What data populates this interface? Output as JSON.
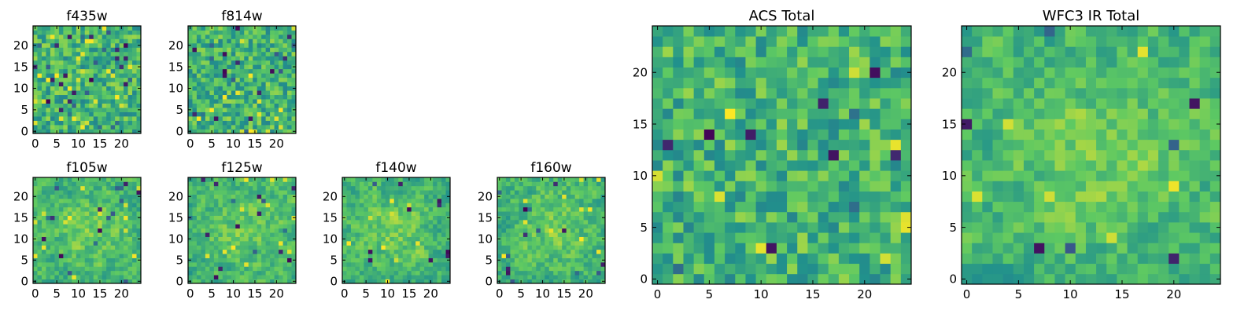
{
  "figure": {
    "background": "#ffffff",
    "colormap": "viridis",
    "colormap_stops": [
      "#440154",
      "#3b528b",
      "#21918c",
      "#5ec962",
      "#fde725"
    ]
  },
  "chart_data": [
    {
      "type": "heatmap",
      "title": "f435w",
      "xticks": [
        "0",
        "5",
        "10",
        "15",
        "20"
      ],
      "yticks": [
        "0",
        "5",
        "10",
        "15",
        "20"
      ],
      "xlim": [
        -0.5,
        24.5
      ],
      "ylim": [
        -0.5,
        24.5
      ],
      "grid_size": 25,
      "seed": 11,
      "smooth": 0,
      "vmin": 0.0,
      "vmax": 1.0,
      "outliers": 32,
      "bright": 0
    },
    {
      "type": "heatmap",
      "title": "f814w",
      "xticks": [
        "0",
        "5",
        "10",
        "15",
        "20"
      ],
      "yticks": [
        "0",
        "5",
        "10",
        "15",
        "20"
      ],
      "xlim": [
        -0.5,
        24.5
      ],
      "ylim": [
        -0.5,
        24.5
      ],
      "grid_size": 25,
      "seed": 23,
      "smooth": 0,
      "vmin": 0.0,
      "vmax": 1.0,
      "outliers": 22,
      "bright": 0
    },
    {
      "type": "heatmap",
      "title": "f105w",
      "xticks": [
        "0",
        "5",
        "10",
        "15",
        "20"
      ],
      "yticks": [
        "0",
        "5",
        "10",
        "15",
        "20"
      ],
      "xlim": [
        -0.5,
        24.5
      ],
      "ylim": [
        -0.5,
        24.5
      ],
      "grid_size": 25,
      "seed": 37,
      "smooth": 1,
      "vmin": 0.0,
      "vmax": 1.0,
      "outliers": 18,
      "bright": 1
    },
    {
      "type": "heatmap",
      "title": "f125w",
      "xticks": [
        "0",
        "5",
        "10",
        "15",
        "20"
      ],
      "yticks": [
        "0",
        "5",
        "10",
        "15",
        "20"
      ],
      "xlim": [
        -0.5,
        24.5
      ],
      "ylim": [
        -0.5,
        24.5
      ],
      "grid_size": 25,
      "seed": 41,
      "smooth": 1,
      "vmin": 0.0,
      "vmax": 1.0,
      "outliers": 16,
      "bright": 1
    },
    {
      "type": "heatmap",
      "title": "f140w",
      "xticks": [
        "0",
        "5",
        "10",
        "15",
        "20"
      ],
      "yticks": [
        "0",
        "5",
        "10",
        "15",
        "20"
      ],
      "xlim": [
        -0.5,
        24.5
      ],
      "ylim": [
        -0.5,
        24.5
      ],
      "grid_size": 25,
      "seed": 53,
      "smooth": 1,
      "vmin": 0.0,
      "vmax": 1.0,
      "outliers": 12,
      "bright": 1
    },
    {
      "type": "heatmap",
      "title": "f160w",
      "xticks": [
        "0",
        "5",
        "10",
        "15",
        "20"
      ],
      "yticks": [
        "0",
        "5",
        "10",
        "15",
        "20"
      ],
      "xlim": [
        -0.5,
        24.5
      ],
      "ylim": [
        -0.5,
        24.5
      ],
      "grid_size": 25,
      "seed": 67,
      "smooth": 1,
      "vmin": 0.0,
      "vmax": 1.0,
      "outliers": 14,
      "bright": 1
    },
    {
      "type": "heatmap",
      "title": "ACS Total",
      "xticks": [
        "0",
        "5",
        "10",
        "15",
        "20"
      ],
      "yticks": [
        "0",
        "5",
        "10",
        "15",
        "20"
      ],
      "xlim": [
        -0.5,
        24.5
      ],
      "ylim": [
        -0.5,
        24.5
      ],
      "grid_size": 25,
      "seed": 79,
      "smooth": 0,
      "vmin": 0.0,
      "vmax": 1.0,
      "outliers": 12,
      "bright": 0
    },
    {
      "type": "heatmap",
      "title": "WFC3 IR Total",
      "xticks": [
        "0",
        "5",
        "10",
        "15",
        "20"
      ],
      "yticks": [
        "0",
        "5",
        "10",
        "15",
        "20"
      ],
      "xlim": [
        -0.5,
        24.5
      ],
      "ylim": [
        -0.5,
        24.5
      ],
      "grid_size": 25,
      "seed": 97,
      "smooth": 1,
      "vmin": 0.0,
      "vmax": 1.0,
      "outliers": 8,
      "bright": 1
    }
  ]
}
